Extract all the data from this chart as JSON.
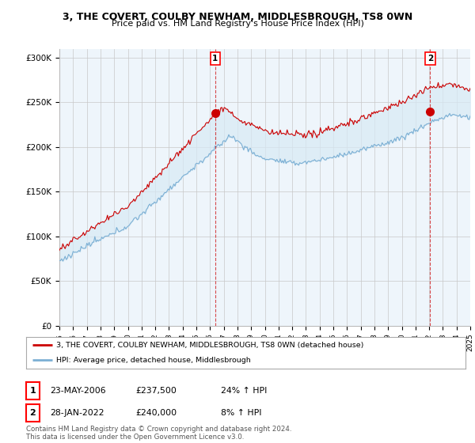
{
  "title_line1": "3, THE COVERT, COULBY NEWHAM, MIDDLESBROUGH, TS8 0WN",
  "title_line2": "Price paid vs. HM Land Registry's House Price Index (HPI)",
  "ylim": [
    0,
    310000
  ],
  "yticks": [
    0,
    50000,
    100000,
    150000,
    200000,
    250000,
    300000
  ],
  "ytick_labels": [
    "£0",
    "£50K",
    "£100K",
    "£150K",
    "£200K",
    "£250K",
    "£300K"
  ],
  "hpi_color": "#7bafd4",
  "price_color": "#cc0000",
  "fill_color": "#d8eaf5",
  "chart_bg_color": "#eef5fb",
  "vline_color": "#cc0000",
  "background_color": "#ffffff",
  "grid_color": "#c8c8c8",
  "legend_label_red": "3, THE COVERT, COULBY NEWHAM, MIDDLESBROUGH, TS8 0WN (detached house)",
  "legend_label_blue": "HPI: Average price, detached house, Middlesbrough",
  "transaction1_date": "23-MAY-2006",
  "transaction1_price": "£237,500",
  "transaction1_hpi": "24% ↑ HPI",
  "transaction1_year": 2006.38,
  "transaction1_value": 237500,
  "transaction2_date": "28-JAN-2022",
  "transaction2_price": "£240,000",
  "transaction2_hpi": "8% ↑ HPI",
  "transaction2_year": 2022.07,
  "transaction2_value": 240000,
  "footer_text": "Contains HM Land Registry data © Crown copyright and database right 2024.\nThis data is licensed under the Open Government Licence v3.0.",
  "start_year": 1995,
  "end_year": 2025
}
